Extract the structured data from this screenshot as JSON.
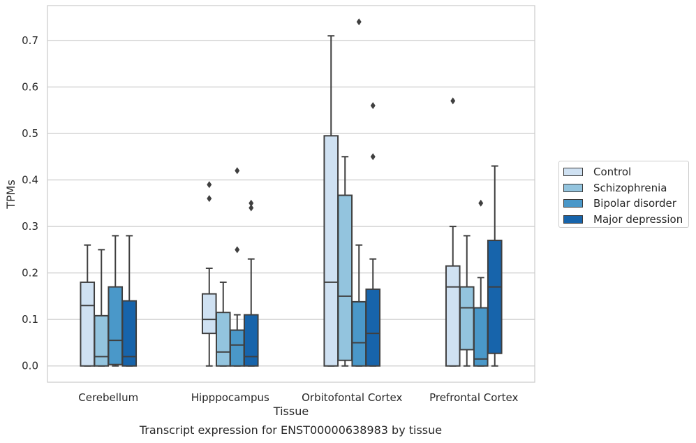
{
  "caption": "Transcript expression for ENST00000638983 by tissue",
  "legend": {
    "items": [
      {
        "label": "Control",
        "color": "#cfe1f2"
      },
      {
        "label": "Schizophrenia",
        "color": "#93c4de"
      },
      {
        "label": "Bipolar disorder",
        "color": "#4a98c9"
      },
      {
        "label": "Major depression",
        "color": "#1764ab"
      }
    ]
  },
  "chart_data": {
    "type": "box",
    "xlabel": "Tissue",
    "ylabel": "TPMs",
    "ylim": [
      -0.035,
      0.775
    ],
    "yticks": [
      0.0,
      0.1,
      0.2,
      0.3,
      0.4,
      0.5,
      0.6,
      0.7
    ],
    "yticklabels": [
      "0.0",
      "0.1",
      "0.2",
      "0.3",
      "0.4",
      "0.5",
      "0.6",
      "0.7"
    ],
    "grid": true,
    "legend_position": "right",
    "categories": [
      "Cerebellum",
      "Hipppocampus",
      "Orbitofontal Cortex",
      "Prefrontal Cortex"
    ],
    "series": [
      {
        "name": "Control",
        "color": "#cfe1f2",
        "boxes": [
          {
            "whislo": 0.0,
            "q1": 0.0,
            "med": 0.13,
            "q3": 0.18,
            "whishi": 0.26,
            "fliers": []
          },
          {
            "whislo": 0.0,
            "q1": 0.07,
            "med": 0.1,
            "q3": 0.155,
            "whishi": 0.21,
            "fliers": [
              0.36,
              0.39
            ]
          },
          {
            "whislo": 0.0,
            "q1": 0.0,
            "med": 0.18,
            "q3": 0.495,
            "whishi": 0.71,
            "fliers": []
          },
          {
            "whislo": 0.0,
            "q1": 0.0,
            "med": 0.17,
            "q3": 0.215,
            "whishi": 0.3,
            "fliers": [
              0.57
            ]
          }
        ]
      },
      {
        "name": "Schizophrenia",
        "color": "#93c4de",
        "boxes": [
          {
            "whislo": 0.0,
            "q1": 0.0,
            "med": 0.02,
            "q3": 0.108,
            "whishi": 0.25,
            "fliers": []
          },
          {
            "whislo": 0.0,
            "q1": 0.0,
            "med": 0.03,
            "q3": 0.115,
            "whishi": 0.18,
            "fliers": []
          },
          {
            "whislo": 0.0,
            "q1": 0.012,
            "med": 0.15,
            "q3": 0.367,
            "whishi": 0.45,
            "fliers": []
          },
          {
            "whislo": 0.0,
            "q1": 0.035,
            "med": 0.125,
            "q3": 0.17,
            "whishi": 0.28,
            "fliers": []
          }
        ]
      },
      {
        "name": "Bipolar disorder",
        "color": "#4a98c9",
        "boxes": [
          {
            "whislo": 0.0,
            "q1": 0.003,
            "med": 0.055,
            "q3": 0.17,
            "whishi": 0.28,
            "fliers": []
          },
          {
            "whislo": 0.0,
            "q1": 0.0,
            "med": 0.045,
            "q3": 0.077,
            "whishi": 0.11,
            "fliers": [
              0.25,
              0.42
            ]
          },
          {
            "whislo": 0.0,
            "q1": 0.0,
            "med": 0.05,
            "q3": 0.138,
            "whishi": 0.26,
            "fliers": [
              0.74
            ]
          },
          {
            "whislo": 0.0,
            "q1": 0.0,
            "med": 0.015,
            "q3": 0.125,
            "whishi": 0.19,
            "fliers": [
              0.35
            ]
          }
        ]
      },
      {
        "name": "Major depression",
        "color": "#1764ab",
        "boxes": [
          {
            "whislo": 0.0,
            "q1": 0.0,
            "med": 0.02,
            "q3": 0.14,
            "whishi": 0.28,
            "fliers": []
          },
          {
            "whislo": 0.0,
            "q1": 0.0,
            "med": 0.02,
            "q3": 0.11,
            "whishi": 0.23,
            "fliers": [
              0.34,
              0.35
            ]
          },
          {
            "whislo": 0.0,
            "q1": 0.0,
            "med": 0.07,
            "q3": 0.165,
            "whishi": 0.23,
            "fliers": [
              0.45,
              0.56
            ]
          },
          {
            "whislo": 0.0,
            "q1": 0.027,
            "med": 0.17,
            "q3": 0.27,
            "whishi": 0.43,
            "fliers": []
          }
        ]
      }
    ]
  }
}
